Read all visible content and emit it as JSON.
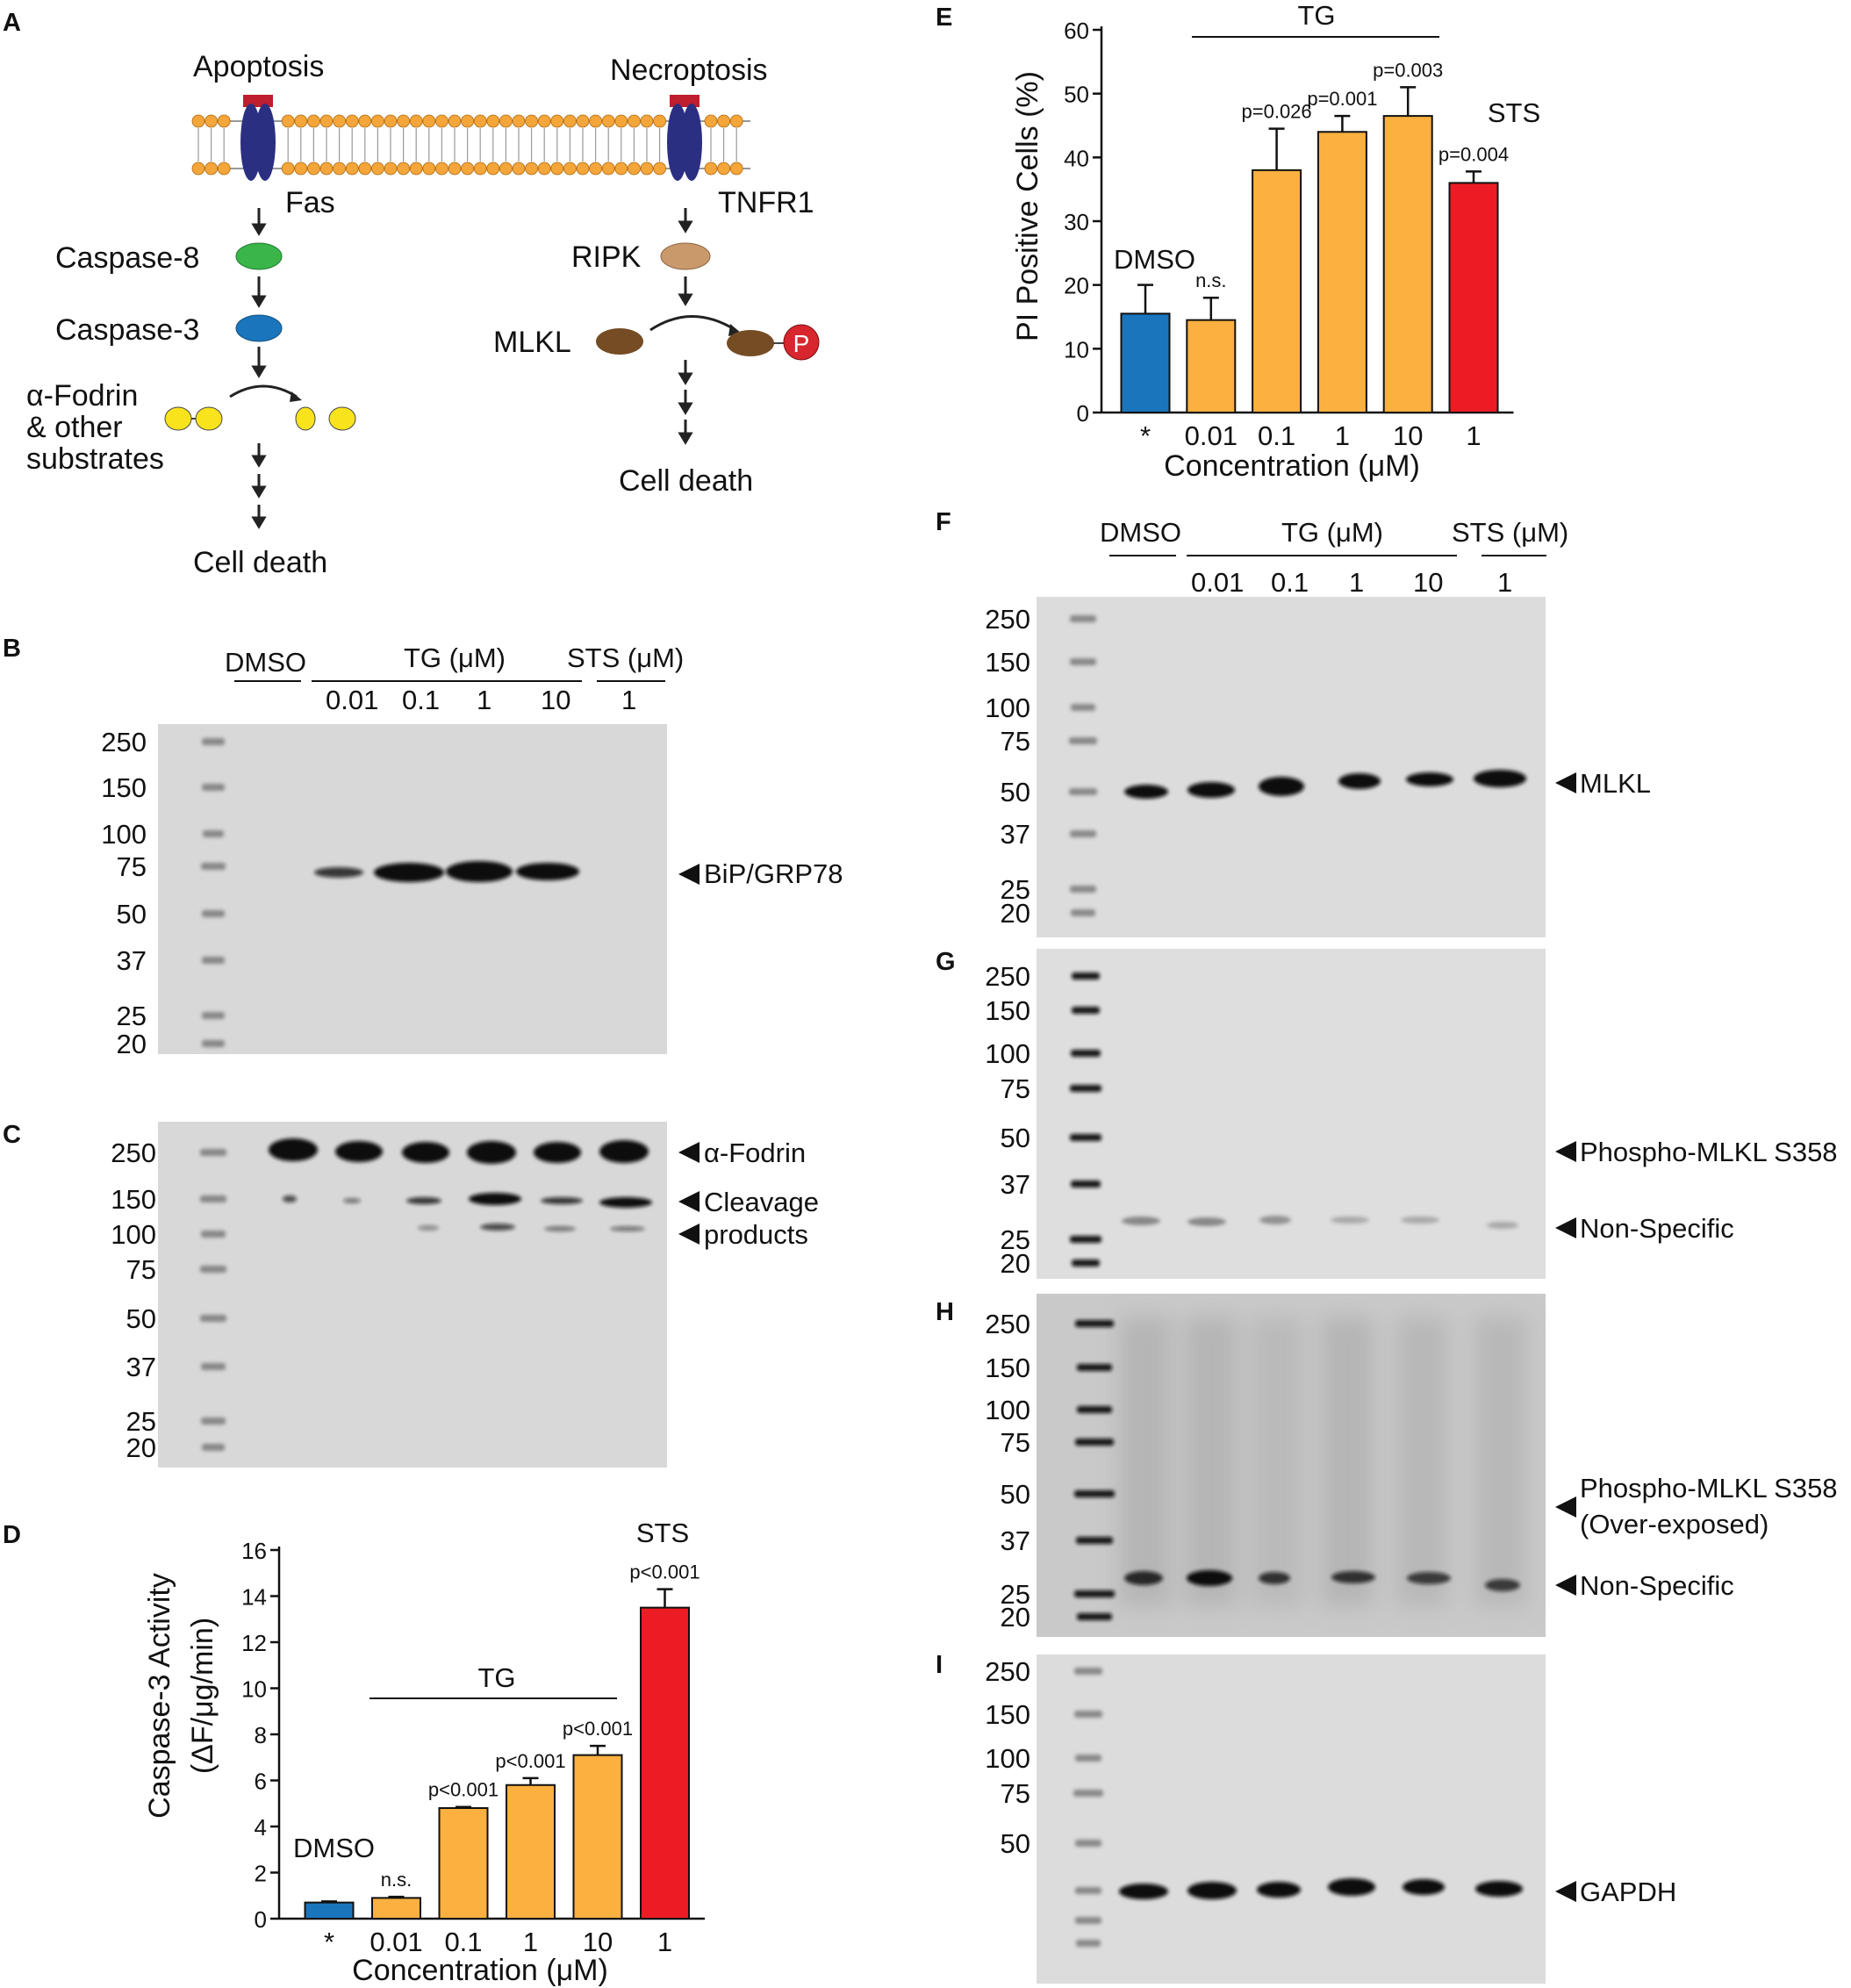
{
  "panel_labels": [
    "A",
    "B",
    "C",
    "D",
    "E",
    "F",
    "G",
    "H",
    "I"
  ],
  "panelA": {
    "apoptosis": "Apoptosis",
    "necroptosis": "Necroptosis",
    "fas": "Fas",
    "tnfr1": "TNFR1",
    "caspase8": "Caspase-8",
    "caspase3": "Caspase-3",
    "fodrin_l1": "α-Fodrin",
    "fodrin_l2": "& other",
    "fodrin_l3": "substrates",
    "ripk": "RIPK",
    "mlkl": "MLKL",
    "p": "P",
    "cell_death_left": "Cell death",
    "cell_death_right": "Cell death",
    "colors": {
      "membrane": "#f4a63a",
      "receptor": "#2b2f82",
      "casp8": "#3ab54a",
      "casp3": "#1b75bc",
      "fodrin": "#f9e31c",
      "ripk": "#c9986b",
      "mlkl": "#754c24",
      "phospho": "#d7262e"
    }
  },
  "ladder": [
    "250",
    "150",
    "100",
    "75",
    "50",
    "37",
    "25",
    "20"
  ],
  "ladder_g": [
    "250",
    "150",
    "100",
    "75",
    "50"
  ],
  "lane_header": {
    "dmso": "DMSO",
    "tg": "TG (μM)",
    "sts": "STS (μM)",
    "tg_doses": [
      "0.01",
      "0.1",
      "1",
      "10"
    ],
    "sts_dose": "1"
  },
  "blot_labels": {
    "bip": "BiP/GRP78",
    "fodrin": "α-Fodrin",
    "cleavage": "Cleavage",
    "products": "products",
    "mlkl": "MLKL",
    "pmlkl": "Phospho-MLKL S358",
    "nonspec_g": "Non-Specific",
    "pmlkl_over_1": "Phospho-MLKL S358",
    "pmlkl_over_2": "(Over-exposed)",
    "nonspec_h": "Non-Specific",
    "gapdh": "GAPDH"
  },
  "chart_data": [
    {
      "panel": "D",
      "type": "bar",
      "categories": [
        "*",
        "0.01",
        "0.1",
        "1",
        "10",
        "1"
      ],
      "values": [
        0.7,
        0.9,
        4.8,
        5.8,
        7.1,
        13.5
      ],
      "errors": [
        0.05,
        0.05,
        0.05,
        0.3,
        0.4,
        0.8
      ],
      "bar_colors": [
        "#1b75bc",
        "#fbb040",
        "#fbb040",
        "#fbb040",
        "#fbb040",
        "#ed1c24"
      ],
      "annotations": [
        "",
        "n.s.",
        "p<0.001",
        "p<0.001",
        "p<0.001",
        "p<0.001"
      ],
      "group_labels": {
        "dmso": "DMSO",
        "tg": "TG",
        "sts": "STS"
      },
      "xlabel": "Concentration (μM)",
      "ylabel_1": "Caspase-3 Activity",
      "ylabel_2": "(ΔF/μg/min)",
      "yticks": [
        "0",
        "2",
        "4",
        "6",
        "8",
        "10",
        "12",
        "14",
        "16"
      ],
      "ylim": [
        0,
        16
      ]
    },
    {
      "panel": "E",
      "type": "bar",
      "categories": [
        "*",
        "0.01",
        "0.1",
        "1",
        "10",
        "1"
      ],
      "values": [
        15.5,
        14.5,
        38,
        44,
        46.5,
        36
      ],
      "errors": [
        4.5,
        3.5,
        6.5,
        2.5,
        4.5,
        1.8
      ],
      "bar_colors": [
        "#1b75bc",
        "#fbb040",
        "#fbb040",
        "#fbb040",
        "#fbb040",
        "#ed1c24"
      ],
      "annotations": [
        "",
        "n.s.",
        "p=0.026",
        "p=0.001",
        "p=0.003",
        "p=0.004"
      ],
      "group_labels": {
        "dmso": "DMSO",
        "tg": "TG",
        "sts": "STS"
      },
      "xlabel": "Concentration (μM)",
      "ylabel": "PI Positive Cells (%)",
      "yticks": [
        "0",
        "10",
        "20",
        "30",
        "40",
        "50",
        "60"
      ],
      "ylim": [
        0,
        60
      ]
    }
  ]
}
